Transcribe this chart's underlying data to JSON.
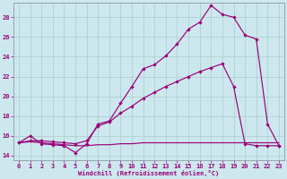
{
  "xlabel": "Windchill (Refroidissement éolien,°C)",
  "background_color": "#cce8ee",
  "grid_color": "#aacccc",
  "line_color": "#990077",
  "marker": "D",
  "markersize": 2.2,
  "xlim": [
    -0.5,
    23.5
  ],
  "ylim": [
    13.5,
    29.5
  ],
  "yticks": [
    14,
    16,
    18,
    20,
    22,
    24,
    26,
    28
  ],
  "xticks": [
    0,
    1,
    2,
    3,
    4,
    5,
    6,
    7,
    8,
    9,
    10,
    11,
    12,
    13,
    14,
    15,
    16,
    17,
    18,
    19,
    20,
    21,
    22,
    23
  ],
  "series1_x": [
    0,
    1,
    2,
    3,
    4,
    5,
    6,
    7,
    8,
    9,
    10,
    11,
    12,
    13,
    14,
    15,
    16,
    17,
    18,
    19,
    20,
    21,
    22,
    23
  ],
  "series1_y": [
    15.3,
    16.0,
    15.2,
    15.1,
    15.0,
    14.3,
    15.2,
    17.2,
    17.5,
    19.3,
    21.0,
    22.8,
    23.2,
    24.1,
    25.3,
    26.8,
    27.5,
    29.2,
    28.3,
    28.0,
    26.2,
    25.8,
    17.2,
    15.0
  ],
  "series2_x": [
    0,
    1,
    2,
    3,
    4,
    5,
    6,
    7,
    8,
    9,
    10,
    11,
    12,
    13,
    14,
    15,
    16,
    17,
    18,
    19,
    20,
    21,
    22,
    23
  ],
  "series2_y": [
    15.3,
    15.5,
    15.5,
    15.4,
    15.3,
    15.2,
    15.5,
    17.0,
    17.4,
    18.3,
    19.0,
    19.8,
    20.4,
    21.0,
    21.5,
    22.0,
    22.5,
    22.9,
    23.3,
    21.0,
    15.2,
    15.0,
    15.0,
    15.0
  ],
  "series3_x": [
    0,
    1,
    2,
    3,
    4,
    5,
    6,
    7,
    8,
    9,
    10,
    11,
    12,
    13,
    14,
    15,
    16,
    17,
    18,
    19,
    20,
    21,
    22,
    23
  ],
  "series3_y": [
    15.3,
    15.4,
    15.3,
    15.2,
    15.1,
    15.0,
    15.0,
    15.1,
    15.1,
    15.2,
    15.2,
    15.3,
    15.3,
    15.3,
    15.3,
    15.3,
    15.3,
    15.3,
    15.3,
    15.3,
    15.3,
    15.3,
    15.3,
    15.3
  ]
}
